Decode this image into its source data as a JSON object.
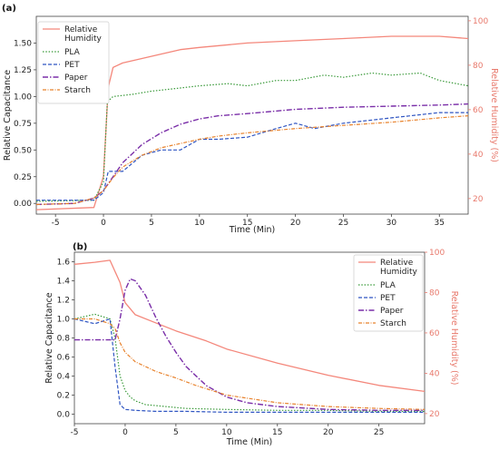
{
  "colors": {
    "humidity": "#f4877b",
    "pla": "#3a9a3a",
    "pet": "#2f55c2",
    "paper": "#7a2ea8",
    "starch": "#e8822c",
    "humidity_axis": "#e8796c"
  },
  "chart_data": [
    {
      "panel": "(a)",
      "type": "line",
      "xlabel": "Time (Min)",
      "ylabel": "Relative Capacitance",
      "y2label": "Relative Humidity (%)",
      "xlim": [
        -7,
        38
      ],
      "ylim": [
        -0.1,
        1.75
      ],
      "y2lim": [
        13,
        102
      ],
      "xticks": [
        -5,
        0,
        5,
        10,
        15,
        20,
        25,
        30,
        35
      ],
      "yticks": [
        "0.00",
        "0.25",
        "0.50",
        "0.75",
        "1.00",
        "1.25",
        "1.50"
      ],
      "y2ticks": [
        20,
        40,
        60,
        80,
        100
      ],
      "legend": [
        "Relative Humidity",
        "PLA",
        "PET",
        "Paper",
        "Starch"
      ],
      "series": [
        {
          "name": "Relative Humidity",
          "axis": "right",
          "x": [
            -7,
            -1,
            0,
            0.5,
            1,
            2,
            4,
            6,
            8,
            10,
            15,
            20,
            25,
            30,
            35,
            38
          ],
          "y": [
            15,
            16,
            30,
            70,
            79,
            81,
            83,
            85,
            87,
            88,
            90,
            91,
            92,
            93,
            93,
            92
          ]
        },
        {
          "name": "PLA",
          "axis": "left",
          "x": [
            -7,
            -1,
            0,
            0.4,
            1,
            3,
            5,
            8,
            10,
            13,
            15,
            18,
            20,
            23,
            25,
            28,
            30,
            33,
            35,
            38
          ],
          "y": [
            0.02,
            0.03,
            0.2,
            0.95,
            1.0,
            1.02,
            1.05,
            1.08,
            1.1,
            1.12,
            1.1,
            1.15,
            1.15,
            1.2,
            1.18,
            1.22,
            1.2,
            1.22,
            1.15,
            1.1
          ]
        },
        {
          "name": "PET",
          "axis": "left",
          "x": [
            -7,
            -1,
            0,
            0.5,
            2,
            4,
            6,
            8,
            10,
            12,
            15,
            18,
            20,
            22,
            25,
            28,
            30,
            32,
            35,
            38
          ],
          "y": [
            0.03,
            0.03,
            0.1,
            0.3,
            0.3,
            0.45,
            0.5,
            0.5,
            0.6,
            0.6,
            0.62,
            0.7,
            0.75,
            0.7,
            0.75,
            0.78,
            0.8,
            0.82,
            0.85,
            0.85
          ]
        },
        {
          "name": "Paper",
          "axis": "left",
          "x": [
            -7,
            -3,
            -1,
            0,
            1,
            2,
            4,
            6,
            8,
            10,
            12,
            15,
            20,
            25,
            30,
            35,
            38
          ],
          "y": [
            -0.01,
            0.0,
            0.05,
            0.12,
            0.25,
            0.38,
            0.55,
            0.66,
            0.74,
            0.79,
            0.82,
            0.84,
            0.88,
            0.9,
            0.91,
            0.92,
            0.93
          ]
        },
        {
          "name": "Starch",
          "axis": "left",
          "x": [
            -7,
            -3,
            -1,
            0,
            1,
            2,
            4,
            6,
            8,
            10,
            12,
            15,
            20,
            25,
            30,
            35,
            38
          ],
          "y": [
            -0.01,
            0.0,
            0.05,
            0.12,
            0.24,
            0.34,
            0.45,
            0.52,
            0.56,
            0.6,
            0.63,
            0.66,
            0.7,
            0.73,
            0.76,
            0.8,
            0.82
          ]
        }
      ]
    },
    {
      "panel": "(b)",
      "type": "line",
      "xlabel": "Time (Min)",
      "ylabel": "Relative Capacitance",
      "y2label": "Relative Humidity (%)",
      "xlim": [
        -5,
        29.5
      ],
      "ylim": [
        -0.1,
        1.7
      ],
      "y2lim": [
        15,
        100
      ],
      "xticks": [
        -5,
        0,
        5,
        10,
        15,
        20,
        25
      ],
      "yticks": [
        "0.0",
        "0.2",
        "0.4",
        "0.6",
        "0.8",
        "1.0",
        "1.2",
        "1.4",
        "1.6"
      ],
      "y2ticks": [
        20,
        40,
        60,
        80,
        100
      ],
      "legend": [
        "Relative Humidity",
        "PLA",
        "PET",
        "Paper",
        "Starch"
      ],
      "series": [
        {
          "name": "Relative Humidity",
          "axis": "right",
          "x": [
            -5,
            -3,
            -1.5,
            -0.5,
            0,
            1,
            3,
            5,
            8,
            10,
            15,
            20,
            25,
            29.5
          ],
          "y": [
            94,
            95,
            96,
            85,
            75,
            69,
            65,
            61,
            56,
            52,
            45,
            39,
            34,
            31
          ]
        },
        {
          "name": "PLA",
          "axis": "left",
          "x": [
            -5,
            -3,
            -1.5,
            -1,
            -0.5,
            0,
            0.5,
            1,
            2,
            4,
            6,
            10,
            15,
            20,
            25,
            29.5
          ],
          "y": [
            1.0,
            1.05,
            1.0,
            0.8,
            0.4,
            0.25,
            0.18,
            0.14,
            0.1,
            0.08,
            0.06,
            0.05,
            0.04,
            0.04,
            0.03,
            0.03
          ]
        },
        {
          "name": "PET",
          "axis": "left",
          "x": [
            -5,
            -3,
            -1.5,
            -1,
            -0.5,
            0,
            1,
            3,
            6,
            10,
            15,
            20,
            25,
            29.5
          ],
          "y": [
            1.0,
            0.95,
            1.0,
            0.5,
            0.1,
            0.05,
            0.04,
            0.03,
            0.03,
            0.02,
            0.02,
            0.02,
            0.02,
            0.02
          ]
        },
        {
          "name": "Paper",
          "axis": "left",
          "x": [
            -5,
            -2,
            -1,
            -0.5,
            0,
            0.5,
            1,
            2,
            3,
            4,
            5,
            6,
            8,
            10,
            12,
            15,
            20,
            25,
            29.5
          ],
          "y": [
            0.78,
            0.78,
            0.78,
            1.0,
            1.3,
            1.42,
            1.4,
            1.25,
            1.02,
            0.82,
            0.65,
            0.5,
            0.3,
            0.18,
            0.12,
            0.08,
            0.05,
            0.04,
            0.04
          ]
        },
        {
          "name": "Starch",
          "axis": "left",
          "x": [
            -5,
            -3,
            -1.5,
            -1,
            -0.5,
            0,
            1,
            2,
            3,
            5,
            7,
            10,
            15,
            20,
            25,
            29.5
          ],
          "y": [
            1.0,
            1.0,
            0.95,
            0.9,
            0.75,
            0.65,
            0.55,
            0.5,
            0.45,
            0.38,
            0.3,
            0.2,
            0.12,
            0.08,
            0.06,
            0.05
          ]
        }
      ]
    }
  ]
}
